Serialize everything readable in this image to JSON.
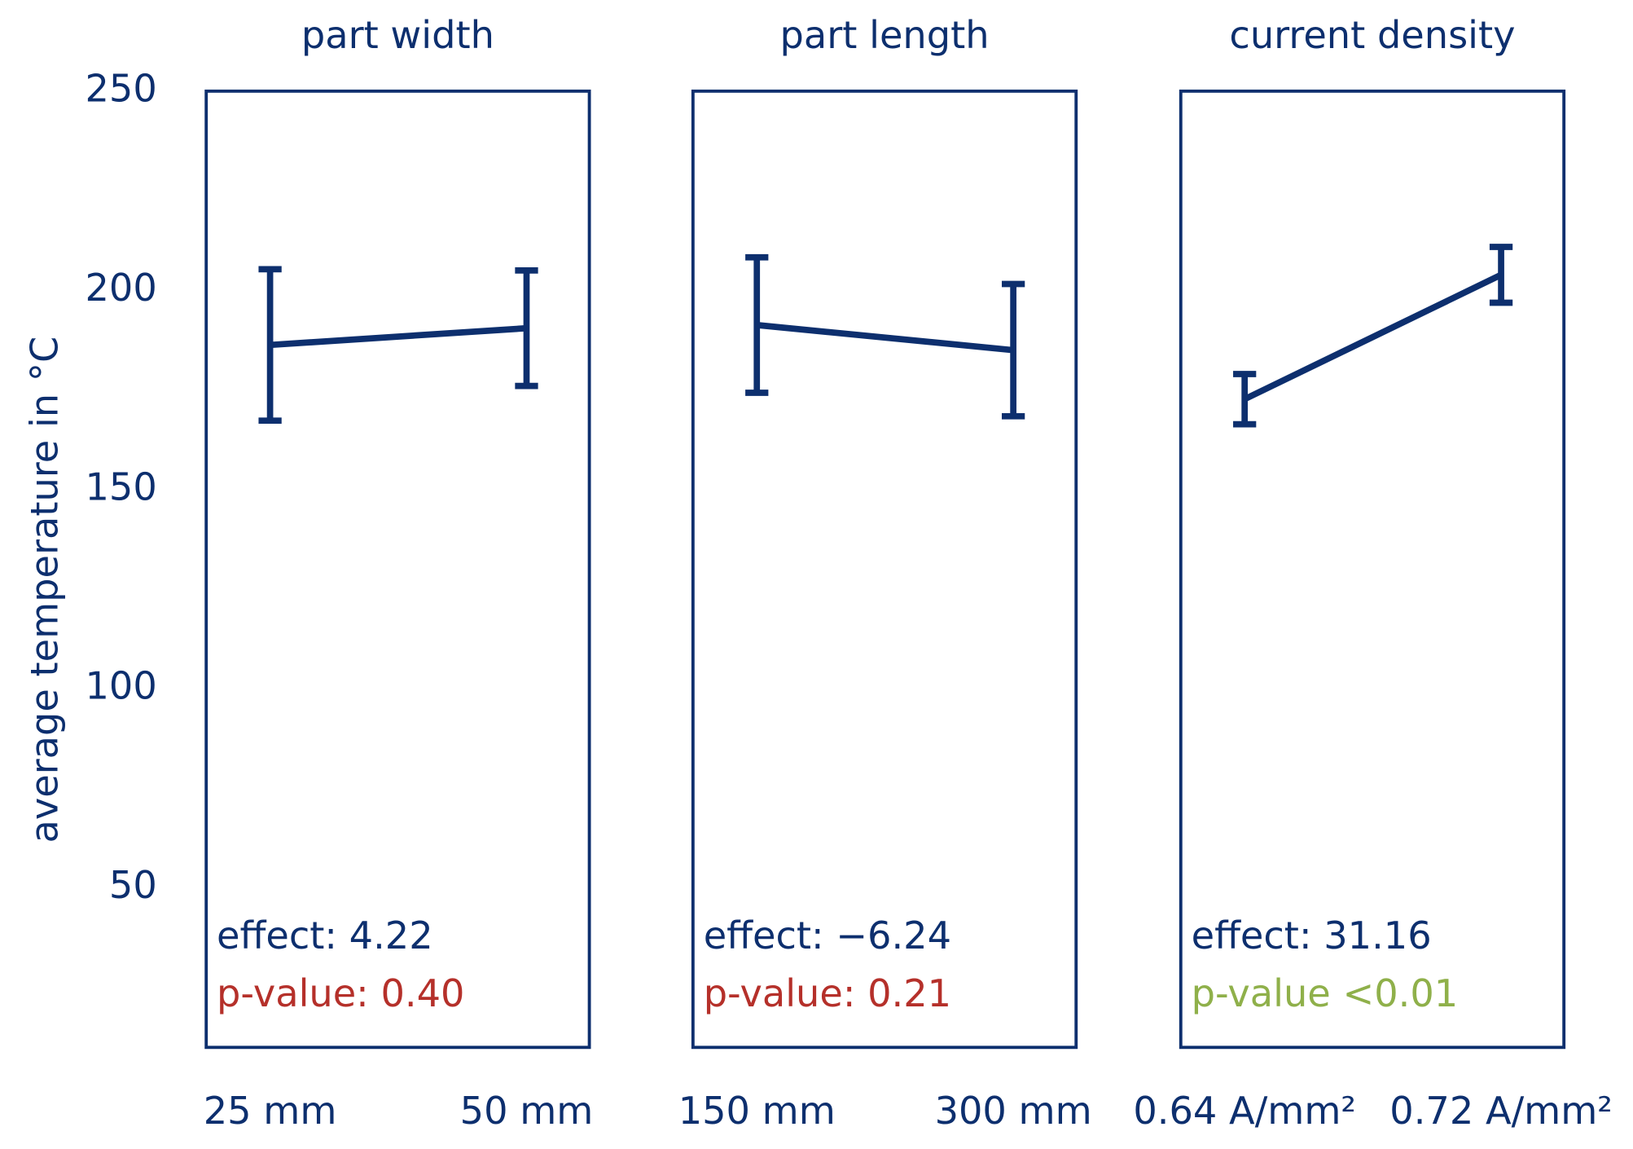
{
  "chart_data": [
    {
      "type": "line",
      "title": "part width",
      "ylabel": "average temperature in °C",
      "categories": [
        "25 mm",
        "50 mm"
      ],
      "series": [
        {
          "values": [
            186.3,
            190.5
          ],
          "errors": [
            19,
            14.5
          ],
          "color": "#0d2f6e"
        }
      ],
      "ylim": [
        10,
        250
      ],
      "yticks": [
        50,
        100,
        150,
        200,
        250
      ],
      "annotations": [
        {
          "text": "effect: 4.22",
          "color": "#0d2f6e"
        },
        {
          "text": "p-value: 0.40",
          "color": "#b5302a"
        }
      ]
    },
    {
      "type": "line",
      "title": "part length",
      "categories": [
        "150 mm",
        "300 mm"
      ],
      "series": [
        {
          "values": [
            191.3,
            185
          ],
          "errors": [
            17,
            16.6
          ],
          "color": "#0d2f6e"
        }
      ],
      "ylim": [
        10,
        250
      ],
      "annotations": [
        {
          "text": "effect: −6.24",
          "color": "#0d2f6e"
        },
        {
          "text": "p-value: 0.21",
          "color": "#b5302a"
        }
      ]
    },
    {
      "type": "line",
      "title": "current density",
      "categories": [
        "0.64 A/mm²",
        "0.72 A/mm²"
      ],
      "series": [
        {
          "values": [
            172.7,
            203.9
          ],
          "errors": [
            6.3,
            7
          ],
          "color": "#0d2f6e"
        }
      ],
      "ylim": [
        10,
        250
      ],
      "annotations": [
        {
          "text": "effect: 31.16",
          "color": "#0d2f6e"
        },
        {
          "text": "p-value <0.01",
          "color": "#8fb04a"
        }
      ]
    }
  ]
}
